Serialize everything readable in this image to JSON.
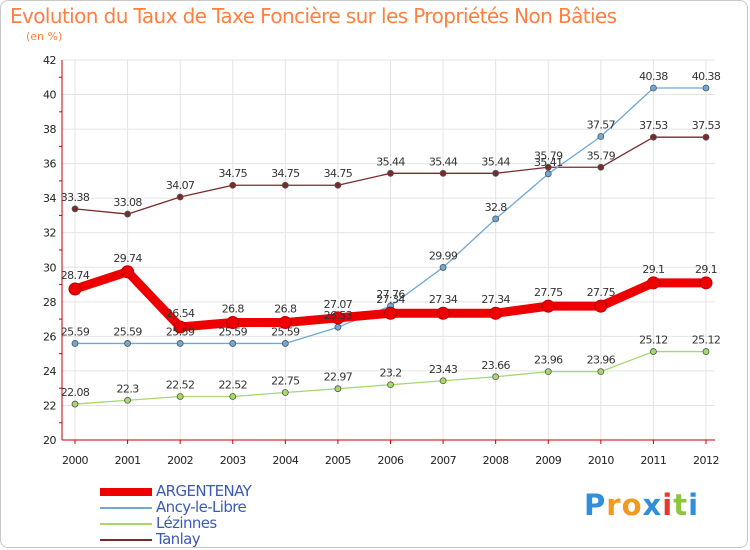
{
  "header": {
    "title": "Evolution du Taux de Taxe Foncière sur les Propriétés Non Bâties",
    "subtitle": "(en %)"
  },
  "colors": {
    "title": "#ff7f3f",
    "axis": "#cc0000",
    "grid": "#e4e4e4",
    "legend_text": "#3c5ab4"
  },
  "chart_data": {
    "type": "line",
    "title": "Evolution du Taux de Taxe Foncière sur les Propriétés Non Bâties",
    "ylabel": "(en %)",
    "xlabel": "",
    "ylim": [
      20,
      42
    ],
    "yticks": [
      20,
      22,
      24,
      26,
      28,
      30,
      32,
      34,
      36,
      38,
      40,
      42
    ],
    "categories": [
      "2000",
      "2001",
      "2002",
      "2003",
      "2004",
      "2005",
      "2006",
      "2007",
      "2008",
      "2009",
      "2010",
      "2011",
      "2012"
    ],
    "grid": true,
    "legend_position": "bottom-left",
    "series": [
      {
        "name": "ARGENTENAY",
        "color": "#ee0000",
        "values": [
          28.74,
          29.74,
          26.54,
          26.8,
          26.8,
          27.07,
          27.34,
          27.34,
          27.34,
          27.75,
          27.75,
          29.1,
          29.1
        ],
        "labels": [
          "28.74",
          "29.74",
          "26.54",
          "26.8",
          "26.8",
          "27.07",
          "27.34",
          "27.34",
          "27.34",
          "27.75",
          "27.75",
          "29.1",
          "29.1"
        ]
      },
      {
        "name": "Ancy-le-Libre",
        "color": "#6fa8d6",
        "values": [
          25.59,
          25.59,
          25.59,
          25.59,
          25.59,
          26.53,
          27.76,
          29.99,
          32.8,
          35.41,
          37.57,
          40.38,
          40.38
        ],
        "labels": [
          "25.59",
          "25.59",
          "25.59",
          "25.59",
          "25.59",
          "26.53",
          "27.76",
          "29.99",
          "32.8",
          "35.41",
          "37.57",
          "40.38",
          "40.38"
        ]
      },
      {
        "name": "Lézinnes",
        "color": "#a6d86e",
        "values": [
          22.08,
          22.3,
          22.52,
          22.52,
          22.75,
          22.97,
          23.2,
          23.43,
          23.66,
          23.96,
          23.96,
          25.12,
          25.12
        ],
        "labels": [
          "22.08",
          "22.3",
          "22.52",
          "22.52",
          "22.75",
          "22.97",
          "23.2",
          "23.43",
          "23.66",
          "23.96",
          "23.96",
          "25.12",
          "25.12"
        ]
      },
      {
        "name": "Tanlay",
        "color": "#7a2a2a",
        "values": [
          33.38,
          33.08,
          34.07,
          34.75,
          34.75,
          34.75,
          35.44,
          35.44,
          35.44,
          35.79,
          35.79,
          37.53,
          37.53
        ],
        "labels": [
          "33.38",
          "33.08",
          "34.07",
          "34.75",
          "34.75",
          "34.75",
          "35.44",
          "35.44",
          "35.44",
          "35.79",
          "35.79",
          "37.53",
          "37.53"
        ]
      }
    ]
  },
  "logo": {
    "letters": [
      "P",
      "r",
      "o",
      "x",
      "i",
      "t",
      "i"
    ],
    "colors": [
      "#2f8fd8",
      "#f29a1e",
      "#f29a1e",
      "#2f8fd8",
      "#e53a2a",
      "#8cc63e",
      "#2f8fd8"
    ]
  }
}
